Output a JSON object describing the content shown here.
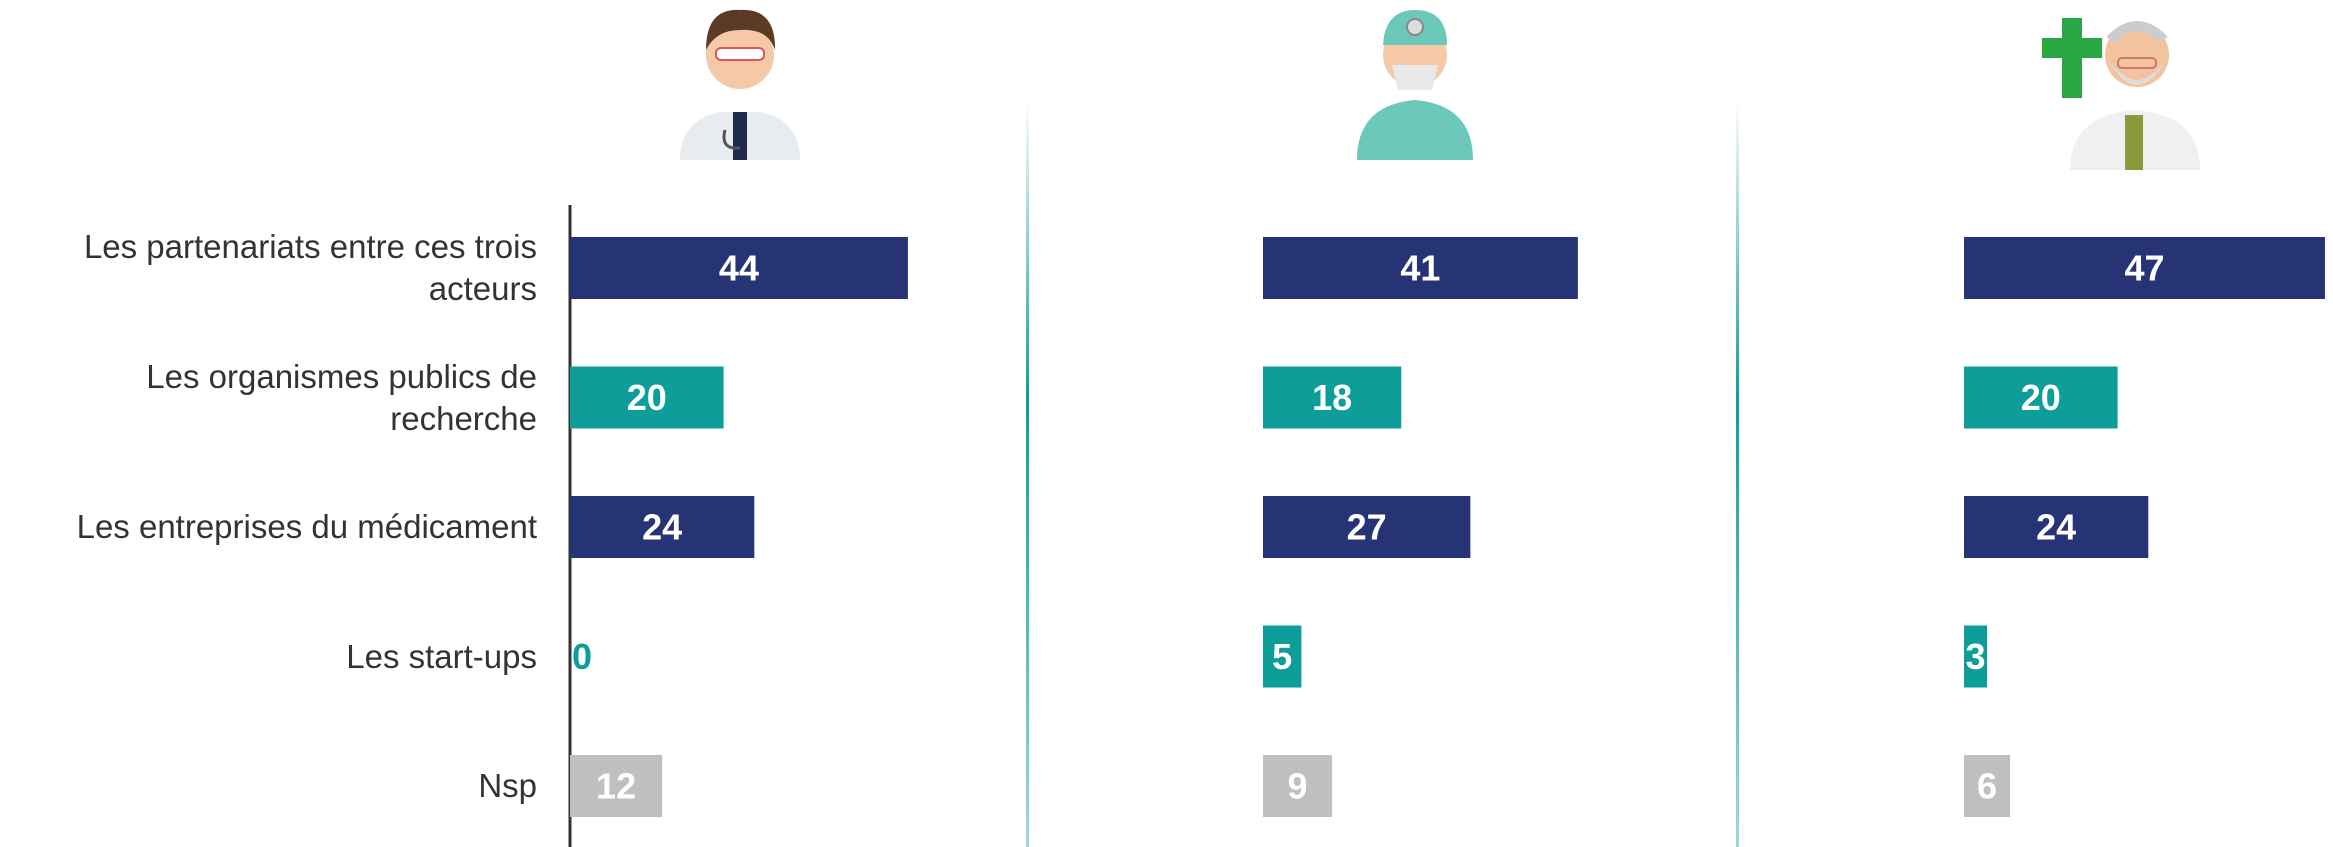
{
  "chart_data": {
    "type": "bar",
    "orientation": "horizontal",
    "categories": [
      "Les partenariats entre ces trois acteurs",
      "Les organismes publics de recherche",
      "Les entreprises du médicament",
      "Les start-ups",
      "Nsp"
    ],
    "colors": [
      "#263476",
      "#0e9e9a",
      "#263476",
      "#0e9e9a",
      "#bfbfbf"
    ],
    "series": [
      {
        "values": [
          44,
          20,
          24,
          0,
          12
        ]
      },
      {
        "values": [
          41,
          18,
          27,
          5,
          9
        ]
      },
      {
        "values": [
          47,
          20,
          24,
          3,
          6
        ]
      }
    ]
  }
}
